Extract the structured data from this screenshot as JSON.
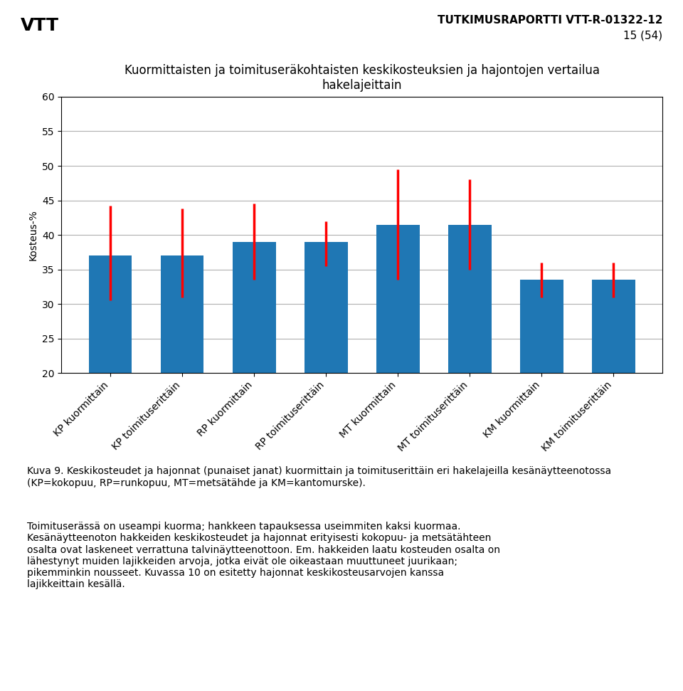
{
  "chart_data": {
    "type": "bar",
    "title": "Kuormittaisten ja toimituseräkohtaisten keskikosteuksien ja hajontojen vertailua\nhakelajeittain",
    "y_label": "Kosteus-%",
    "categories": [
      "KP kuormittain",
      "KP toimituserittäin",
      "RP kuormittain",
      "RP toimituserittäin",
      "MT kuormittain",
      "MT toimituserittäin",
      "KM kuormittain",
      "KM toimituserittäin"
    ],
    "values": [
      37.0,
      37.0,
      39.0,
      39.0,
      41.5,
      41.5,
      33.5,
      33.5
    ],
    "error_bars": {
      "lower": [
        30.5,
        31.0,
        33.5,
        35.5,
        33.5,
        35.0,
        31.0,
        31.0
      ],
      "upper": [
        44.2,
        43.8,
        44.5,
        42.0,
        49.5,
        48.0,
        36.0,
        36.0
      ],
      "color": "#FF0000"
    },
    "ylim": [
      20,
      60
    ],
    "yticks": [
      20,
      25,
      30,
      35,
      40,
      45,
      50,
      55,
      60
    ],
    "grid": true,
    "logo_text": "VTT",
    "header_text": "TUTKIMUSRAPORTTI VTT-R-01322-12",
    "header_page": "15 (54)",
    "caption": "Kuva 9. Keskikosteudet ja hajonnat (punaiset janat) kuormittain ja toimituserittäin eri hakelajeilla kesänäytteenotossa (KP=kokopuu, RP=runkopuu, MT=metsätähde ja KM=kantomurske).",
    "body_text": "Toimituserässä on useampi kuorma; hankkeen tapauksessa useimmiten kaksi kuormaa.\nKesänäytteenoton hakkeiden keskikosteudet ja hajonnat erityisesti kokopuu- ja metsätähteen\nosalta ovat laskeneet verrattuna talvinäytteenottoon. Em. hakkeiden laatu kosteuden osalta on\nlähestynyt muiden lajikkeiden arvoja, jotka eivät ole oikeastaan muuttuneet juurikaan;\npikemminkin nousseet. Kuvassa 10 on esitetty hajonnat keskikosteusarvojen kanssa\nlajikkeittain kesällä."
  }
}
